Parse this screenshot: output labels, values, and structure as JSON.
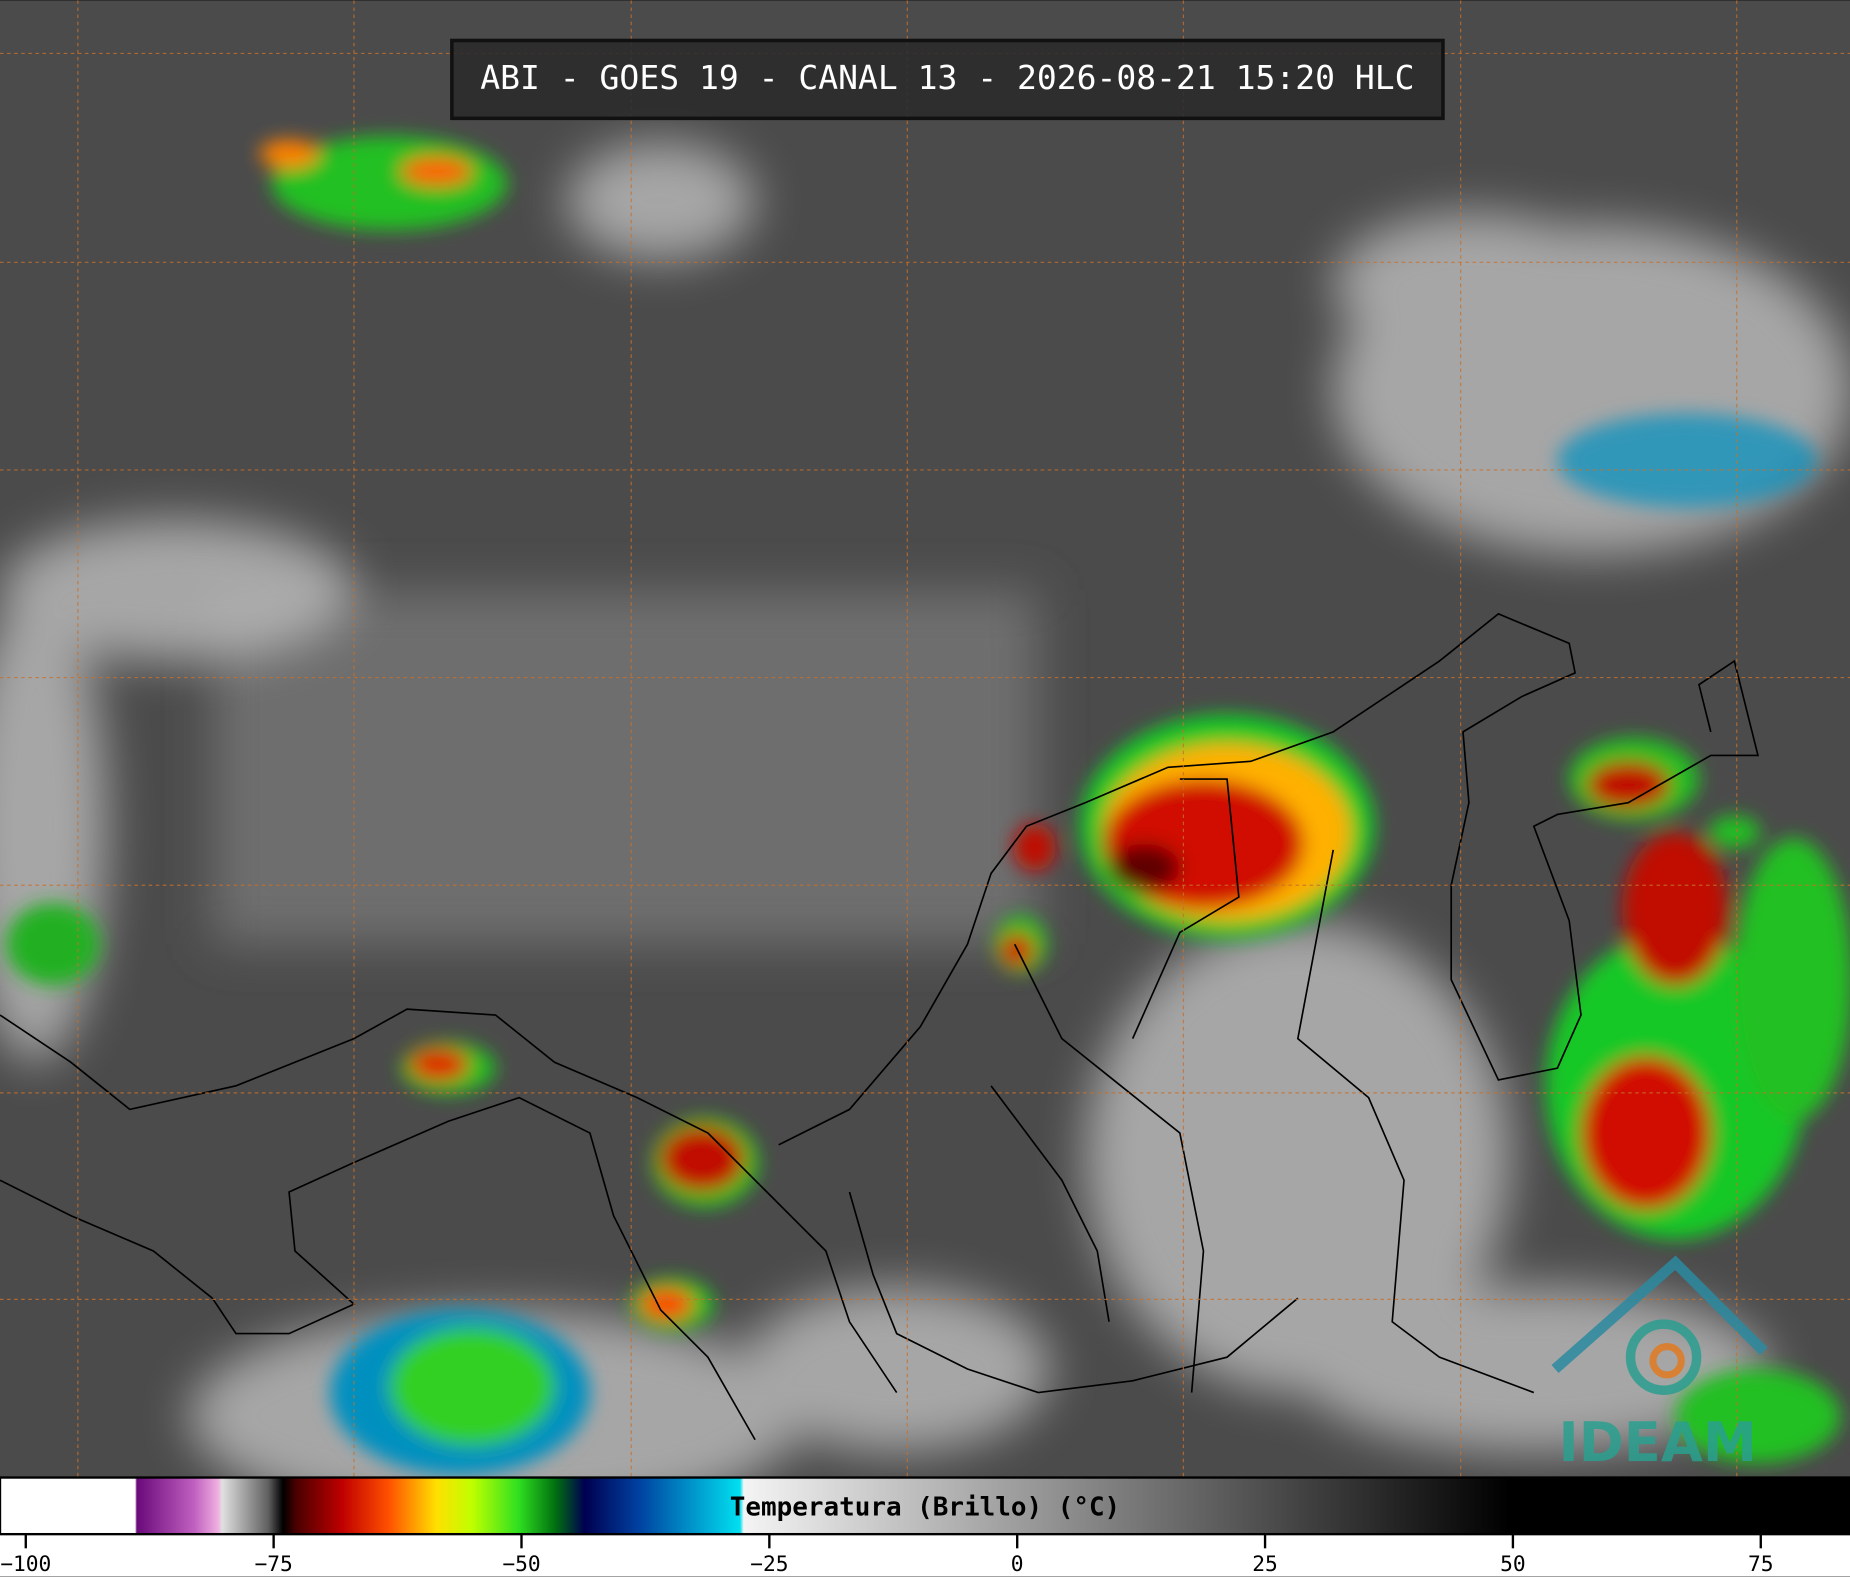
{
  "header": {
    "title": "ABI - GOES 19 - CANAL 13 - 2026-08-21 15:20 HLC"
  },
  "logo": {
    "text": "IDEAM"
  },
  "colorbar": {
    "label": "Temperatura (Brillo) (°C)",
    "lim": [
      -102.6,
      84
    ],
    "ticks": [
      {
        "value": -100,
        "label": "−100"
      },
      {
        "value": -75,
        "label": "−75"
      },
      {
        "value": -50,
        "label": "−50"
      },
      {
        "value": -25,
        "label": "−25"
      },
      0,
      25,
      50,
      75
    ]
  }
}
